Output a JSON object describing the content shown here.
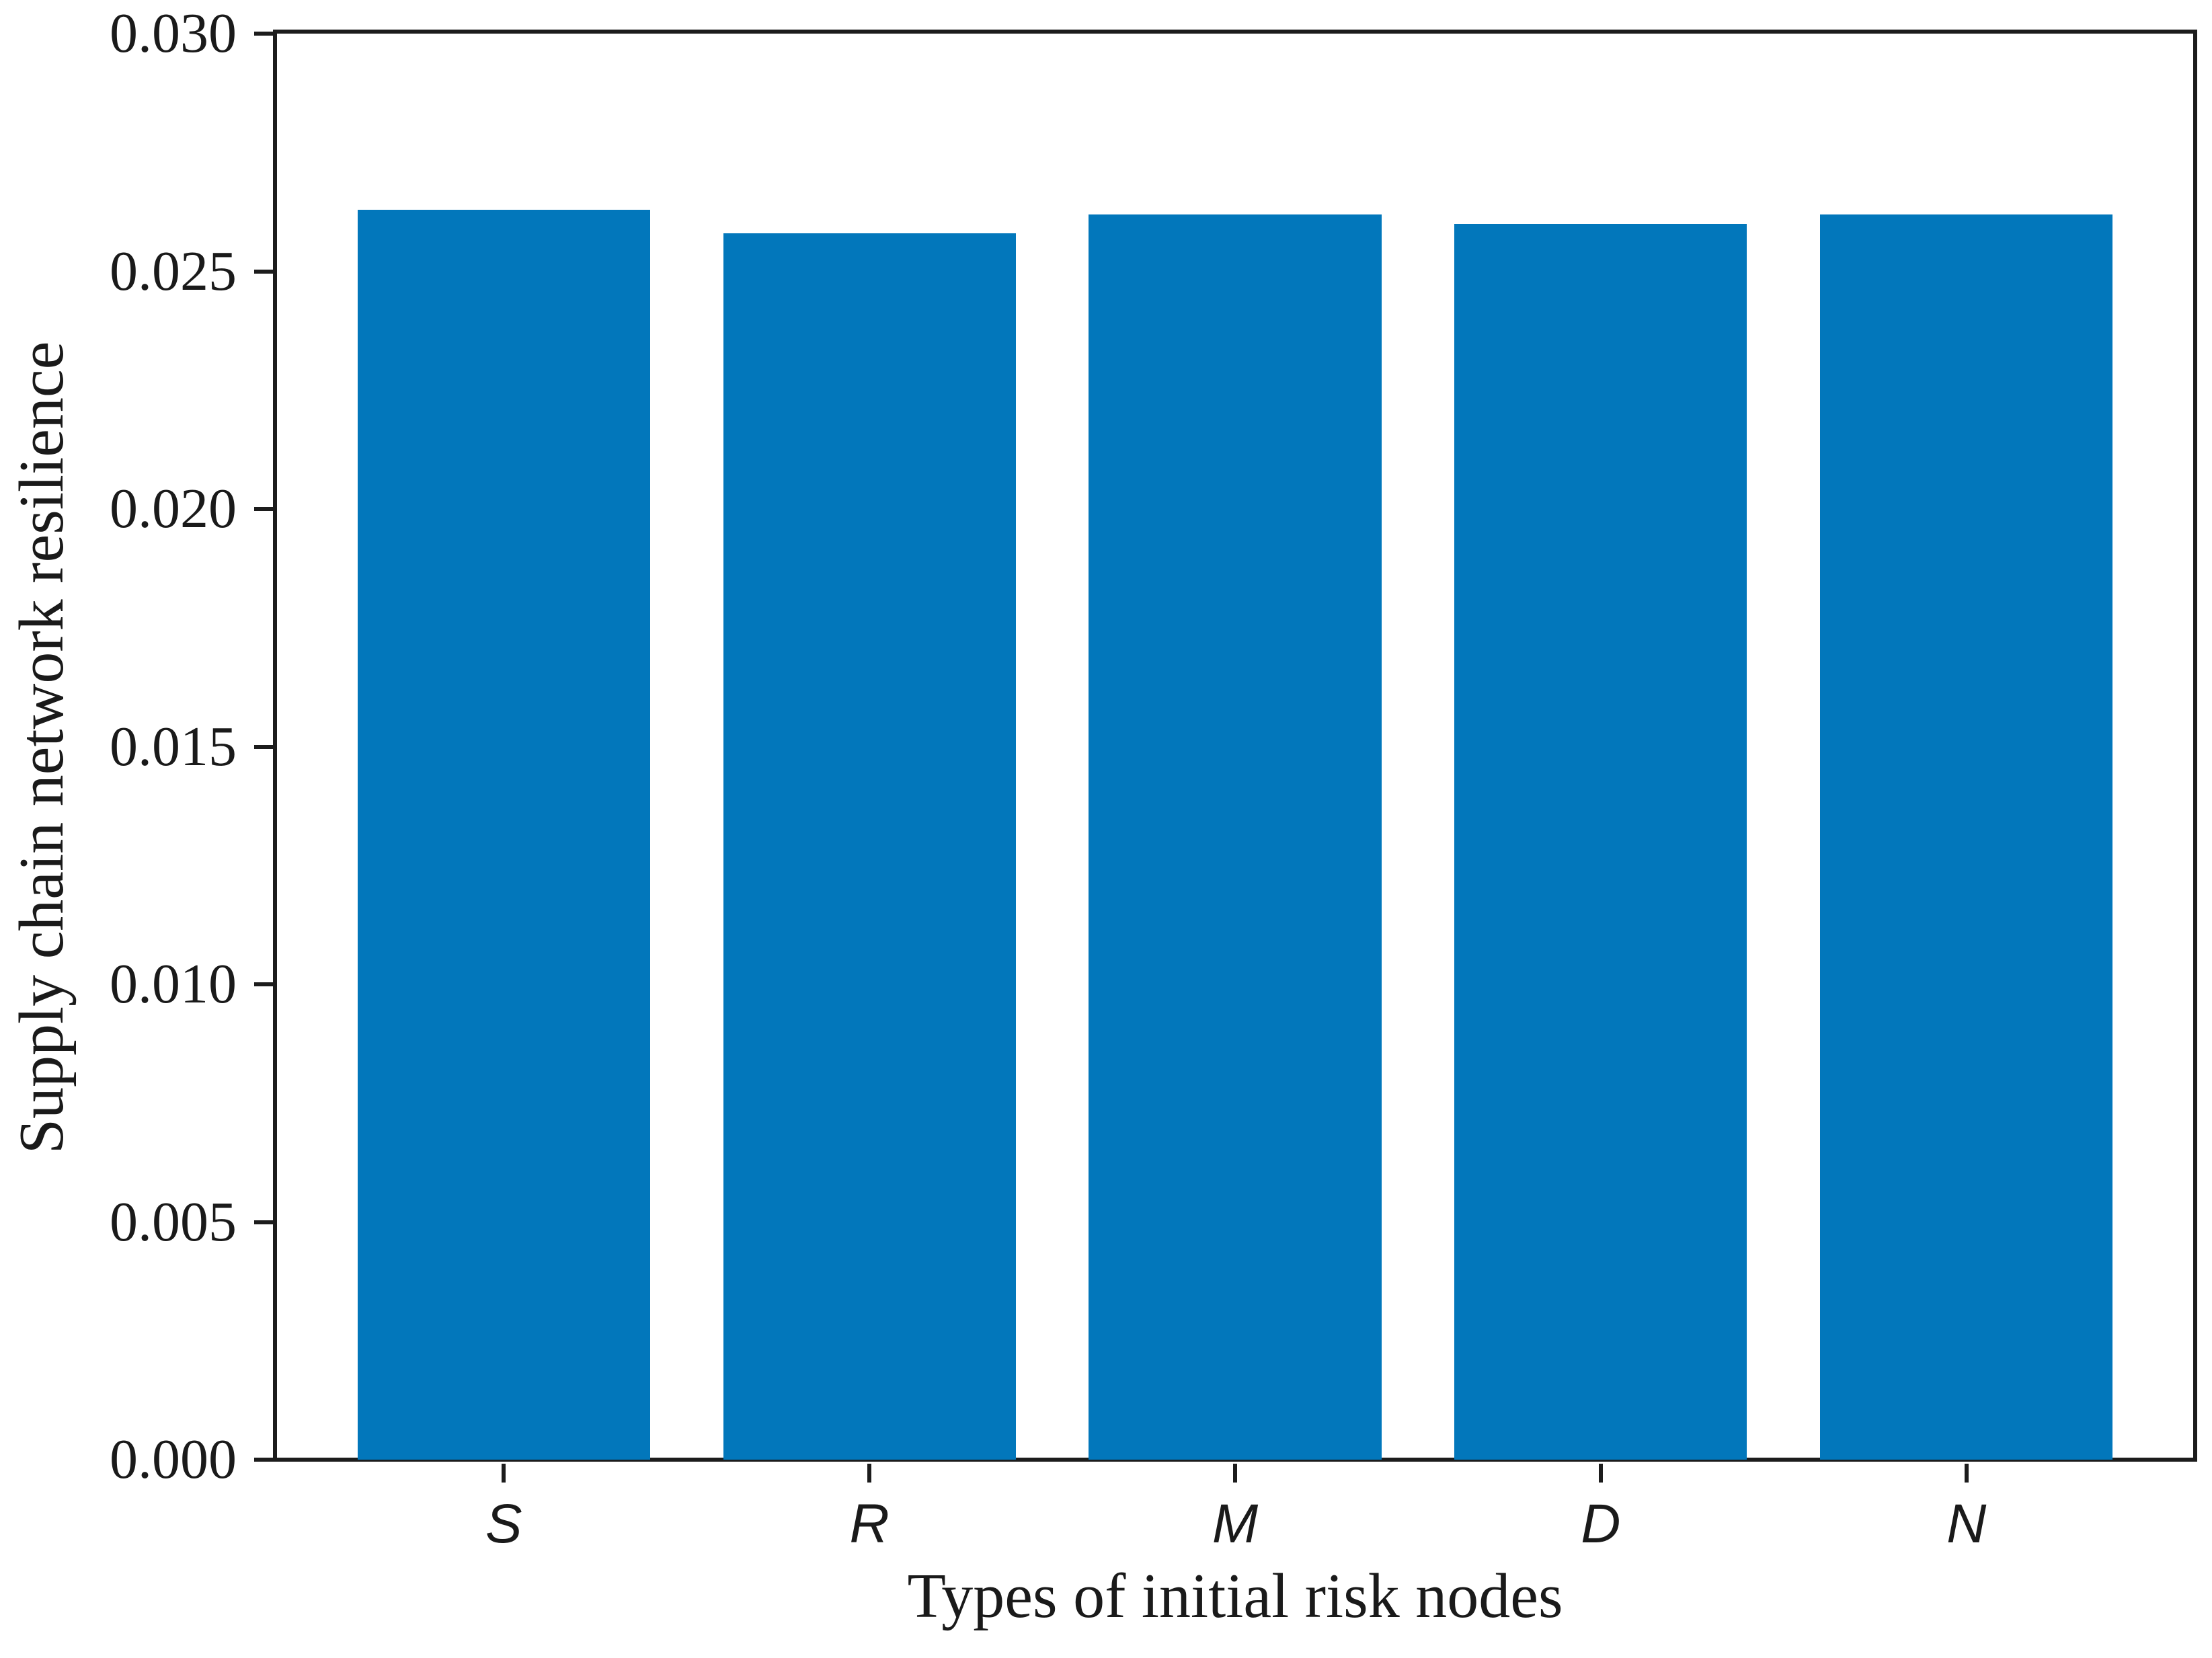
{
  "figure": {
    "background_color": "#ffffff",
    "axis_color": "#1c1c1c",
    "text_color": "#1a1a1a"
  },
  "chart_data": {
    "type": "bar",
    "categories": [
      "S",
      "R",
      "M",
      "D",
      "N"
    ],
    "values": [
      0.0263,
      0.0258,
      0.0262,
      0.026,
      0.0262
    ],
    "title": "",
    "xlabel": "Types of initial risk nodes",
    "ylabel": "Supply chain network resilience",
    "ylim": [
      0,
      0.03
    ],
    "yticks": [
      "0.000",
      "0.005",
      "0.010",
      "0.015",
      "0.020",
      "0.025",
      "0.030"
    ],
    "bar_color": "#0277bb",
    "bar_width_fraction": 0.8,
    "grid": false,
    "legend_position": "none",
    "category_label_style": "italic"
  }
}
